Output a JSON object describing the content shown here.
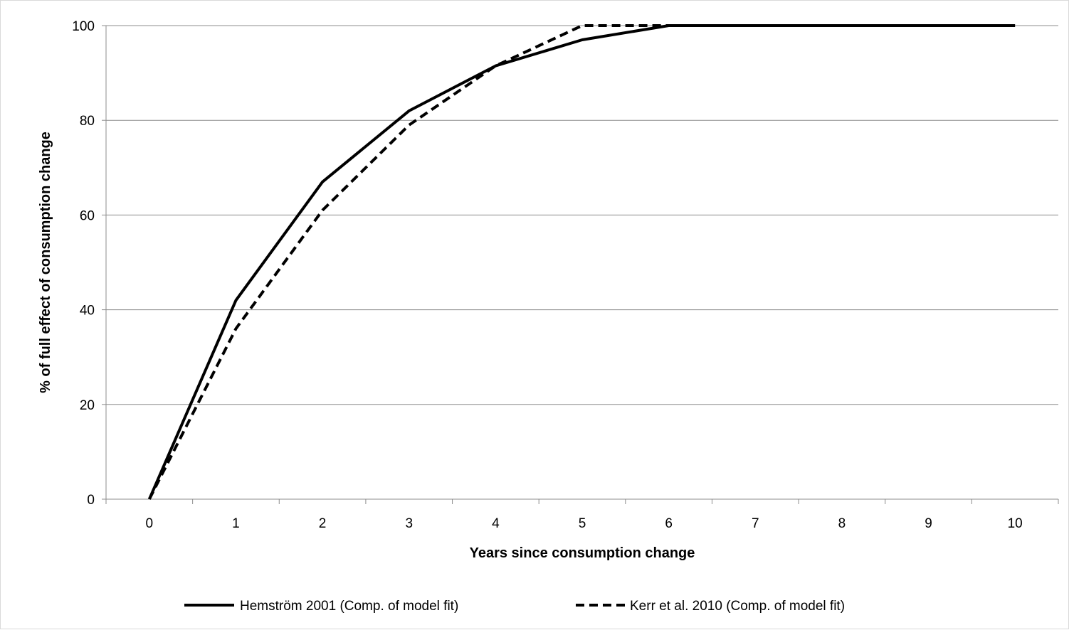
{
  "chart_data": {
    "type": "line",
    "title": "",
    "xlabel": "Years since consumption change",
    "ylabel": "% of full effect of consumption change",
    "x": [
      0,
      1,
      2,
      3,
      4,
      5,
      6,
      7,
      8,
      9,
      10
    ],
    "xlim": [
      0,
      10
    ],
    "ylim": [
      0,
      100
    ],
    "yticks": [
      0,
      20,
      40,
      60,
      80,
      100
    ],
    "grid": "horizontal",
    "legend_position": "bottom",
    "series": [
      {
        "name": "Hemström 2001 (Comp. of model fit)",
        "style": "solid",
        "color": "#000000",
        "values": [
          0,
          42,
          67,
          82,
          91.5,
          97,
          100,
          100,
          100,
          100,
          100
        ]
      },
      {
        "name": "Kerr et al. 2010 (Comp. of model fit)",
        "style": "dashed",
        "color": "#000000",
        "values": [
          0,
          36,
          61,
          79,
          91.5,
          100,
          100,
          100,
          100,
          100,
          100
        ]
      }
    ]
  }
}
